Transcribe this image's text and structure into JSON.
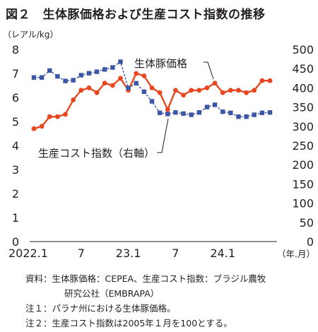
{
  "header": {
    "title": "図２　生体豚価格および生産コスト指数の推移",
    "left_unit": "（レアル/kg）"
  },
  "chart_data": {
    "type": "line",
    "title": "図２　生体豚価格および生産コスト指数の推移",
    "x": [
      "2022.1",
      "2022.2",
      "2022.3",
      "2022.4",
      "2022.5",
      "2022.6",
      "2022.7",
      "2022.8",
      "2022.9",
      "2022.10",
      "2022.11",
      "2022.12",
      "2023.1",
      "2023.2",
      "2023.3",
      "2023.4",
      "2023.5",
      "2023.6",
      "2023.7",
      "2023.8",
      "2023.9",
      "2023.10",
      "2023.11",
      "2023.12",
      "2024.1",
      "2024.2",
      "2024.3",
      "2024.4",
      "2024.5",
      "2024.6",
      "2024.7"
    ],
    "x_tick_labels": [
      "2022.1",
      "7",
      "23.1",
      "7",
      "24.1"
    ],
    "x_tick_positions": [
      "2022.1",
      "2022.7",
      "2023.1",
      "2023.7",
      "2024.1"
    ],
    "x_unit": "（年.月）",
    "left_axis": {
      "unit": "（レアル/kg）",
      "range": [
        0,
        8
      ],
      "ticks": [
        "0",
        "1",
        "2",
        "3",
        "4",
        "5",
        "6",
        "7",
        "8"
      ]
    },
    "right_axis": {
      "range": [
        0,
        500
      ],
      "ticks": [
        "0",
        "50",
        "100",
        "150",
        "200",
        "250",
        "300",
        "350",
        "400",
        "450",
        "500"
      ]
    },
    "series": [
      {
        "name": "生体豚価格",
        "axis": "left",
        "color": "#e8471f",
        "marker": "circle",
        "values": [
          4.7,
          4.8,
          5.2,
          5.2,
          5.3,
          5.9,
          6.3,
          6.4,
          6.2,
          6.6,
          6.5,
          6.8,
          6.3,
          7.0,
          6.9,
          6.4,
          6.2,
          5.5,
          6.3,
          6.1,
          6.3,
          6.3,
          6.4,
          6.6,
          6.2,
          6.3,
          6.3,
          6.2,
          6.3,
          6.7,
          6.7
        ]
      },
      {
        "name": "生産コスト指数（右軸）",
        "axis": "right",
        "color": "#3d55a5",
        "marker": "square",
        "values": [
          427,
          427,
          445,
          430,
          418,
          420,
          433,
          438,
          442,
          448,
          453,
          468,
          400,
          412,
          390,
          365,
          335,
          332,
          336,
          333,
          330,
          336,
          350,
          356,
          338,
          335,
          325,
          325,
          330,
          335,
          336
        ]
      }
    ],
    "series_labels": [
      "生体豚価格",
      "生産コスト指数（右軸）"
    ],
    "colors": {
      "price": "#e8471f",
      "cost": "#3d55a5",
      "axis": "#231f20"
    }
  },
  "notes": [
    "資料：生体豚価格：CEPEA、生産コスト指数：ブラジル農牧",
    "研究公社（EMBRAPA）",
    "注１：パラナ州における生体豚価格。",
    "注２：生産コスト指数は2005年１月を100とする。"
  ]
}
